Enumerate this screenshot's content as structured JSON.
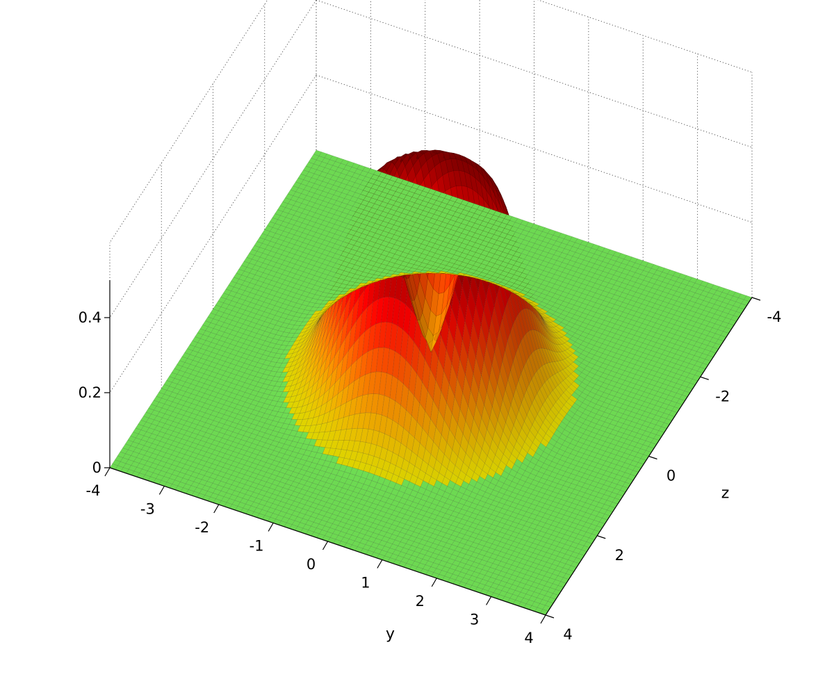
{
  "chart_data": {
    "type": "surface",
    "title": "",
    "xlabel": "y",
    "ylabel": "z",
    "zlabel": "",
    "x_ticks": [
      "-4",
      "-3",
      "-2",
      "-1",
      "0",
      "1",
      "2",
      "3",
      "4"
    ],
    "y_ticks": [
      "-4",
      "-2",
      "0",
      "2",
      "4"
    ],
    "z_ticks": [
      "0",
      "0.2",
      "0.4"
    ],
    "xlim": [
      -4,
      4
    ],
    "ylim": [
      -4,
      4
    ],
    "zlim": [
      0,
      0.5
    ],
    "grid": true,
    "surface": {
      "description_of_shape": "ring",
      "ring_radius": 1,
      "peak_value": 0.5,
      "base_value": 0,
      "base_color": "#80ff60",
      "colormap": [
        "#ffff00",
        "#ff8000",
        "#ff0000",
        "#800000"
      ]
    }
  }
}
